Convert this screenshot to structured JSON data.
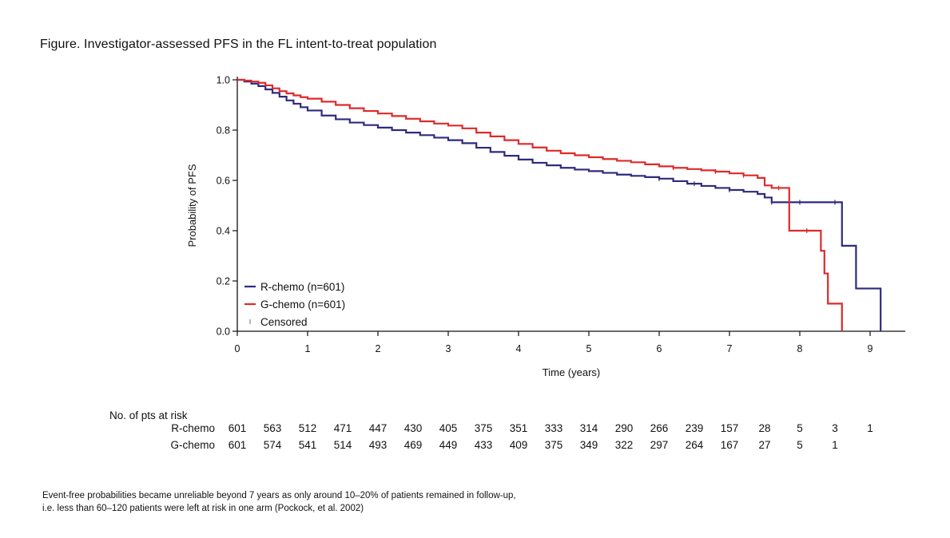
{
  "figure_title": "Figure. Investigator-assessed PFS in the FL intent-to-treat population",
  "chart_data": {
    "type": "line",
    "subtype": "kaplan-meier",
    "title": "Figure. Investigator-assessed PFS in the FL intent-to-treat population",
    "xlabel": "Time (years)",
    "ylabel": "Probability of PFS",
    "xlim": [
      0,
      9.5
    ],
    "ylim": [
      0,
      1.0
    ],
    "x_ticks": [
      0,
      1,
      2,
      3,
      4,
      5,
      6,
      7,
      8,
      9
    ],
    "x_tick_labels": [
      "0",
      "1",
      "2",
      "3",
      "4",
      "5",
      "6",
      "7",
      "8",
      "9"
    ],
    "y_ticks": [
      0,
      0.2,
      0.4,
      0.6,
      0.8,
      1.0
    ],
    "y_tick_labels": [
      "0.0",
      "0.2",
      "0.4",
      "0.6",
      "0.8",
      "1.0"
    ],
    "legend_position": "bottom-left",
    "legend": [
      {
        "label": "R-chemo (n=601)",
        "color": "#2e2a7e",
        "kind": "line"
      },
      {
        "label": "G-chemo (n=601)",
        "color": "#dd2a2a",
        "kind": "line"
      },
      {
        "label": "Censored",
        "color": "#888888",
        "kind": "tick"
      }
    ],
    "series": [
      {
        "name": "R-chemo (n=601)",
        "color": "#2e2a7e",
        "x": [
          0,
          0.1,
          0.2,
          0.3,
          0.4,
          0.5,
          0.6,
          0.7,
          0.8,
          0.9,
          1.0,
          1.2,
          1.4,
          1.6,
          1.8,
          2.0,
          2.2,
          2.4,
          2.6,
          2.8,
          3.0,
          3.2,
          3.4,
          3.6,
          3.8,
          4.0,
          4.2,
          4.4,
          4.6,
          4.8,
          5.0,
          5.2,
          5.4,
          5.6,
          5.8,
          6.0,
          6.2,
          6.4,
          6.6,
          6.8,
          7.0,
          7.2,
          7.4,
          7.5,
          7.6,
          7.8,
          8.0,
          8.2,
          8.4,
          8.6,
          8.8,
          9.0,
          9.15
        ],
        "y": [
          1.0,
          0.993,
          0.985,
          0.975,
          0.962,
          0.948,
          0.933,
          0.918,
          0.905,
          0.891,
          0.878,
          0.858,
          0.843,
          0.83,
          0.82,
          0.81,
          0.8,
          0.79,
          0.78,
          0.77,
          0.76,
          0.748,
          0.73,
          0.713,
          0.698,
          0.683,
          0.67,
          0.66,
          0.65,
          0.643,
          0.637,
          0.63,
          0.623,
          0.618,
          0.613,
          0.607,
          0.597,
          0.587,
          0.578,
          0.57,
          0.562,
          0.555,
          0.546,
          0.532,
          0.513,
          0.513,
          0.513,
          0.513,
          0.513,
          0.34,
          0.17,
          0.17,
          0.0
        ],
        "censored_x": [
          6.0,
          6.5,
          7.0,
          7.6,
          8.0,
          8.5
        ]
      },
      {
        "name": "G-chemo (n=601)",
        "color": "#dd2a2a",
        "x": [
          0,
          0.1,
          0.2,
          0.3,
          0.4,
          0.5,
          0.6,
          0.7,
          0.8,
          0.9,
          1.0,
          1.2,
          1.4,
          1.6,
          1.8,
          2.0,
          2.2,
          2.4,
          2.6,
          2.8,
          3.0,
          3.2,
          3.4,
          3.6,
          3.8,
          4.0,
          4.2,
          4.4,
          4.6,
          4.8,
          5.0,
          5.2,
          5.4,
          5.6,
          5.8,
          6.0,
          6.2,
          6.4,
          6.6,
          6.8,
          7.0,
          7.2,
          7.4,
          7.5,
          7.6,
          7.7,
          7.8,
          7.85,
          8.0,
          8.2,
          8.3,
          8.35,
          8.4,
          8.6
        ],
        "y": [
          1.0,
          0.997,
          0.993,
          0.988,
          0.978,
          0.966,
          0.955,
          0.946,
          0.938,
          0.931,
          0.925,
          0.913,
          0.9,
          0.887,
          0.876,
          0.866,
          0.856,
          0.845,
          0.835,
          0.826,
          0.818,
          0.807,
          0.79,
          0.775,
          0.76,
          0.745,
          0.731,
          0.718,
          0.708,
          0.7,
          0.692,
          0.685,
          0.678,
          0.672,
          0.664,
          0.656,
          0.65,
          0.645,
          0.64,
          0.635,
          0.628,
          0.62,
          0.61,
          0.58,
          0.57,
          0.57,
          0.57,
          0.4,
          0.4,
          0.4,
          0.32,
          0.23,
          0.11,
          0.0
        ],
        "censored_x": [
          6.2,
          6.8,
          7.2,
          7.7,
          8.1
        ]
      }
    ],
    "risk_table": {
      "header": "No. of pts at risk",
      "rows": [
        {
          "name": "R-chemo",
          "values": [
            "601",
            "563",
            "512",
            "471",
            "447",
            "430",
            "405",
            "375",
            "351",
            "333",
            "314",
            "290",
            "266",
            "239",
            "157",
            "28",
            "5",
            "3",
            "1"
          ]
        },
        {
          "name": "G-chemo",
          "values": [
            "601",
            "574",
            "541",
            "514",
            "493",
            "469",
            "449",
            "433",
            "409",
            "375",
            "349",
            "322",
            "297",
            "264",
            "167",
            "27",
            "5",
            "1"
          ]
        }
      ]
    }
  },
  "footnote": {
    "line1": "Event-free probabilities became unreliable beyond 7 years as only around 10–20% of patients remained in follow-up,",
    "line2": "i.e. less than 60–120 patients were left at risk in one arm (Pockock, et al. 2002)"
  }
}
